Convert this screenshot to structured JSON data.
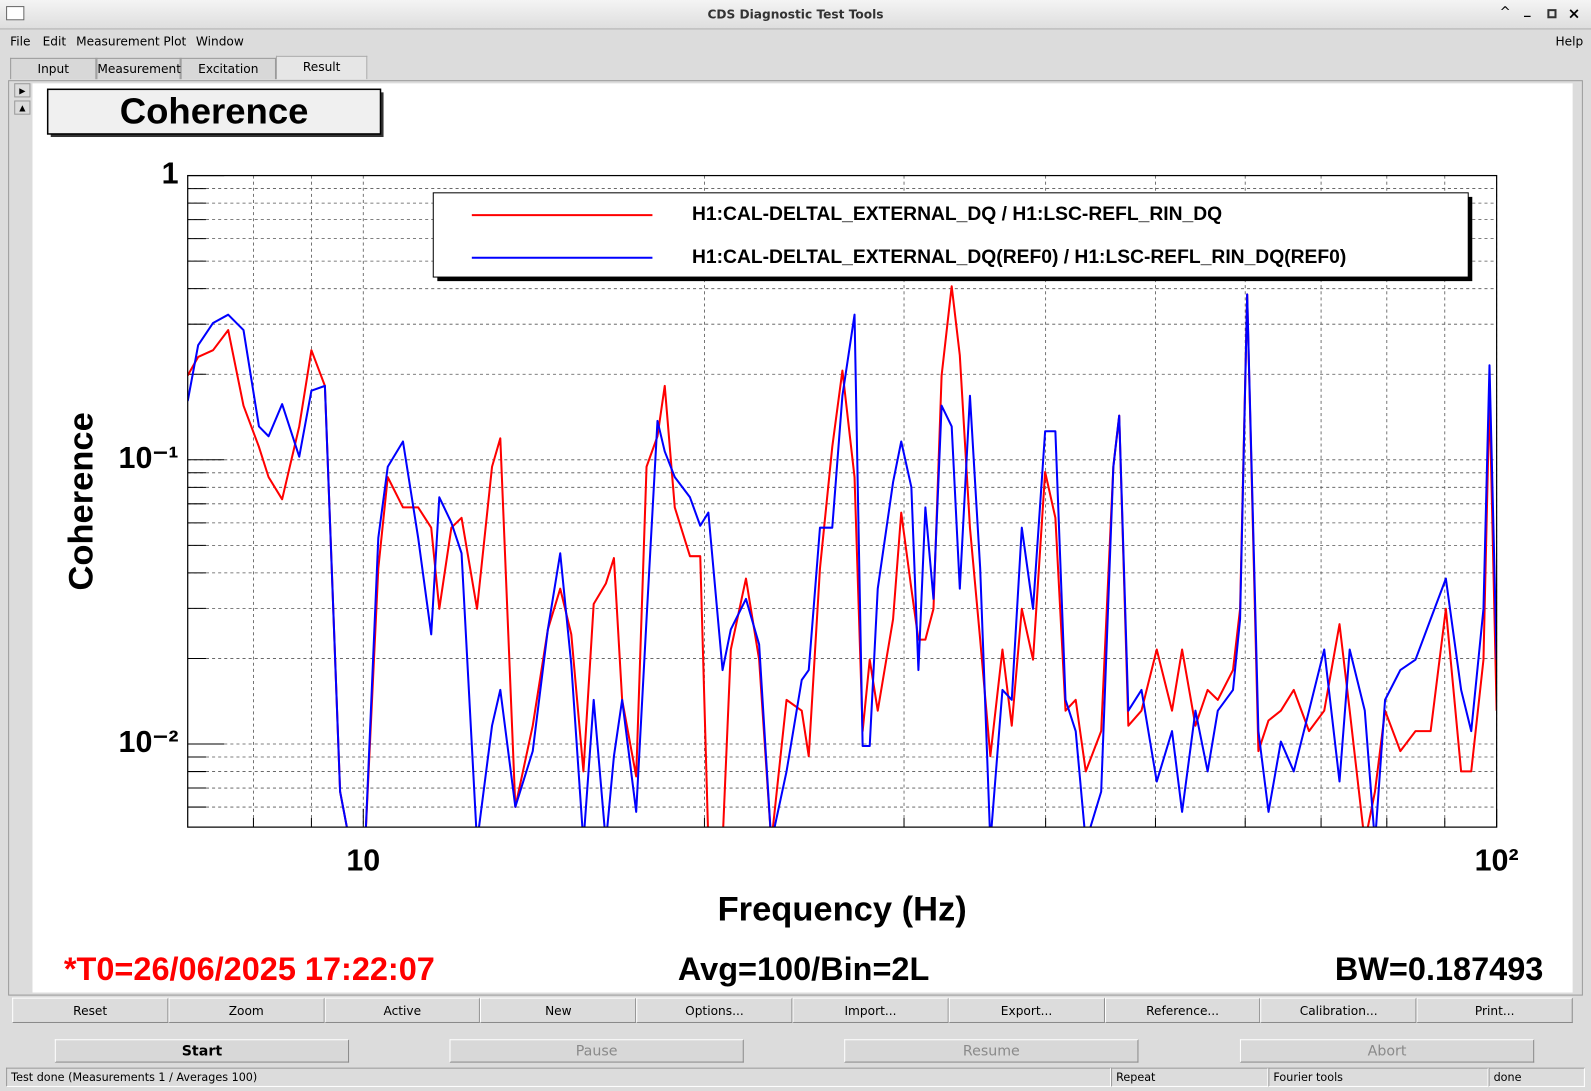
{
  "window": {
    "title": "CDS Diagnostic Test Tools",
    "menu": [
      "File",
      "Edit",
      "Measurement",
      "Plot",
      "Window"
    ],
    "help": "Help",
    "tabs": [
      "Input",
      "Measurement",
      "Excitation",
      "Result"
    ],
    "plot_buttons": [
      "Reset",
      "Zoom",
      "Active",
      "New",
      "Options...",
      "Import...",
      "Export...",
      "Reference...",
      "Calibration...",
      "Print..."
    ],
    "control_buttons": [
      "Start",
      "Pause",
      "Resume",
      "Abort"
    ],
    "status": [
      "Test done (Measurements 1 / Averages 100)",
      "Repeat",
      "Fourier tools",
      "done"
    ]
  },
  "chart_data": {
    "type": "line",
    "title": "Coherence",
    "x_label": "Frequency (Hz)",
    "y_label": "Coherence",
    "log_x": true,
    "log_y": true,
    "grid": true,
    "legend": "top-right",
    "xlim": [
      7,
      100
    ],
    "ylim": [
      0.0051,
      1
    ],
    "xticks": [
      10,
      {
        "value": 100,
        "label": "10²"
      }
    ],
    "yticks": [
      {
        "value": 0.01,
        "label": "10⁻²"
      },
      {
        "value": 0.1,
        "label": "10⁻¹"
      },
      1
    ],
    "xminor": [
      8,
      9,
      20,
      30,
      40,
      50,
      60,
      70,
      80,
      90
    ],
    "yminor": [
      0.006,
      0.007,
      0.008,
      0.009,
      0.02,
      0.03,
      0.04,
      0.05,
      0.06,
      0.07,
      0.08,
      0.09,
      0.2,
      0.3,
      0.4,
      0.5,
      0.6,
      0.7,
      0.8,
      0.9
    ],
    "annotations": [
      "*T0=26/06/2025 17:22:07",
      "Avg=100/Bin=2L",
      "BW=0.187493"
    ],
    "annotation_colors": [
      "#ff0000",
      "#000000",
      "#000000"
    ],
    "x": [
      7.0,
      7.15,
      7.37,
      7.6,
      7.84,
      8.09,
      8.25,
      8.48,
      8.78,
      9.0,
      9.25,
      9.54,
      9.73,
      10.04,
      10.31,
      10.51,
      10.84,
      11.18,
      11.48,
      11.67,
      11.96,
      12.21,
      12.6,
      12.99,
      13.21,
      13.62,
      14.11,
      14.55,
      14.92,
      15.26,
      15.64,
      15.97,
      16.37,
      16.64,
      16.92,
      17.41,
      17.78,
      18.18,
      18.45,
      18.83,
      19.42,
      19.83,
      20.16,
      20.75,
      21.1,
      21.76,
      22.35,
      22.91,
      23.63,
      24.37,
      24.72,
      25.29,
      25.93,
      26.47,
      27.13,
      27.58,
      27.98,
      28.44,
      29.34,
      29.83,
      30.45,
      30.89,
      31.33,
      31.85,
      32.38,
      33.05,
      33.6,
      34.3,
      35.02,
      35.75,
      36.64,
      37.34,
      38.11,
      38.99,
      39.96,
      40.8,
      41.65,
      42.52,
      43.4,
      44.78,
      45.9,
      46.45,
      47.32,
      48.6,
      50.13,
      51.71,
      52.78,
      54.23,
      55.59,
      56.75,
      58.53,
      59.38,
      60.24,
      61.63,
      62.91,
      64.51,
      66.22,
      68.31,
      70.45,
      72.67,
      74.19,
      76.5,
      78.1,
      79.72,
      82.23,
      84.8,
      87.45,
      90.2,
      93.04,
      94.97,
      97.36,
      98.56,
      100
    ],
    "series": [
      {
        "name": "H1:CAL-DELTAL_EXTERNAL_DQ / H1:LSC-REFL_RIN_DQ",
        "color": "#ff0000",
        "values": [
          0.198,
          0.23,
          0.243,
          0.286,
          0.155,
          0.111,
          0.0869,
          0.0726,
          0.131,
          0.243,
          0.182,
          0.0068,
          0.0045,
          0.0045,
          0.0415,
          0.0869,
          0.068,
          0.068,
          0.0577,
          0.0299,
          0.0577,
          0.0625,
          0.0299,
          0.0945,
          0.119,
          0.00601,
          0.0116,
          0.0253,
          0.0352,
          0.0243,
          0.00801,
          0.0311,
          0.0367,
          0.0451,
          0.0143,
          0.00769,
          0.0945,
          0.121,
          0.182,
          0.068,
          0.0458,
          0.0458,
          0.0045,
          0.0045,
          0.0215,
          0.0382,
          0.0198,
          0.0045,
          0.0143,
          0.0131,
          0.00906,
          0.0415,
          0.111,
          0.206,
          0.0869,
          0.0111,
          0.0198,
          0.0131,
          0.0275,
          0.0652,
          0.0352,
          0.0233,
          0.0233,
          0.0299,
          0.198,
          0.408,
          0.233,
          0.0577,
          0.0233,
          0.00906,
          0.0215,
          0.0116,
          0.0299,
          0.0198,
          0.0906,
          0.0625,
          0.0131,
          0.0143,
          0.00801,
          0.0111,
          0.0945,
          0.143,
          0.0116,
          0.0131,
          0.0215,
          0.0131,
          0.0215,
          0.0116,
          0.0155,
          0.0143,
          0.0182,
          0.0299,
          0.382,
          0.00944,
          0.0121,
          0.0131,
          0.0155,
          0.0111,
          0.0131,
          0.0264,
          0.0131,
          0.0045,
          0.0068,
          0.0131,
          0.00944,
          0.0111,
          0.0111,
          0.0299,
          0.00801,
          0.00801,
          0.0198,
          0.168,
          0.0131
        ]
      },
      {
        "name": "H1:CAL-DELTAL_EXTERNAL_DQ(REF0) / H1:LSC-REFL_RIN_DQ(REF0)",
        "color": "#0000ff",
        "values": [
          0.161,
          0.253,
          0.303,
          0.324,
          0.286,
          0.131,
          0.121,
          0.157,
          0.1025,
          0.175,
          0.182,
          0.0068,
          0.0045,
          0.0045,
          0.0531,
          0.0945,
          0.116,
          0.0531,
          0.0243,
          0.0738,
          0.0601,
          0.0469,
          0.0045,
          0.0116,
          0.0155,
          0.00601,
          0.00944,
          0.0253,
          0.0469,
          0.019,
          0.0045,
          0.0143,
          0.0045,
          0.00906,
          0.0143,
          0.00577,
          0.0275,
          0.137,
          0.107,
          0.0869,
          0.0738,
          0.0586,
          0.0652,
          0.0182,
          0.0253,
          0.0324,
          0.0224,
          0.0045,
          0.00801,
          0.0168,
          0.0182,
          0.0577,
          0.0577,
          0.168,
          0.324,
          0.00984,
          0.00984,
          0.0352,
          0.0834,
          0.116,
          0.0801,
          0.0182,
          0.068,
          0.0324,
          0.155,
          0.131,
          0.0352,
          0.168,
          0.0415,
          0.0045,
          0.0155,
          0.0143,
          0.0577,
          0.0299,
          0.126,
          0.126,
          0.0143,
          0.0111,
          0.0045,
          0.0068,
          0.0945,
          0.143,
          0.0131,
          0.0155,
          0.00738,
          0.0111,
          0.00577,
          0.0131,
          0.00801,
          0.0131,
          0.0155,
          0.0275,
          0.382,
          0.0111,
          0.00577,
          0.0102,
          0.00801,
          0.0131,
          0.0215,
          0.00738,
          0.0215,
          0.0131,
          0.0045,
          0.0143,
          0.0182,
          0.0198,
          0.0275,
          0.0382,
          0.0155,
          0.0111,
          0.0299,
          0.215,
          0.0198
        ]
      }
    ]
  }
}
